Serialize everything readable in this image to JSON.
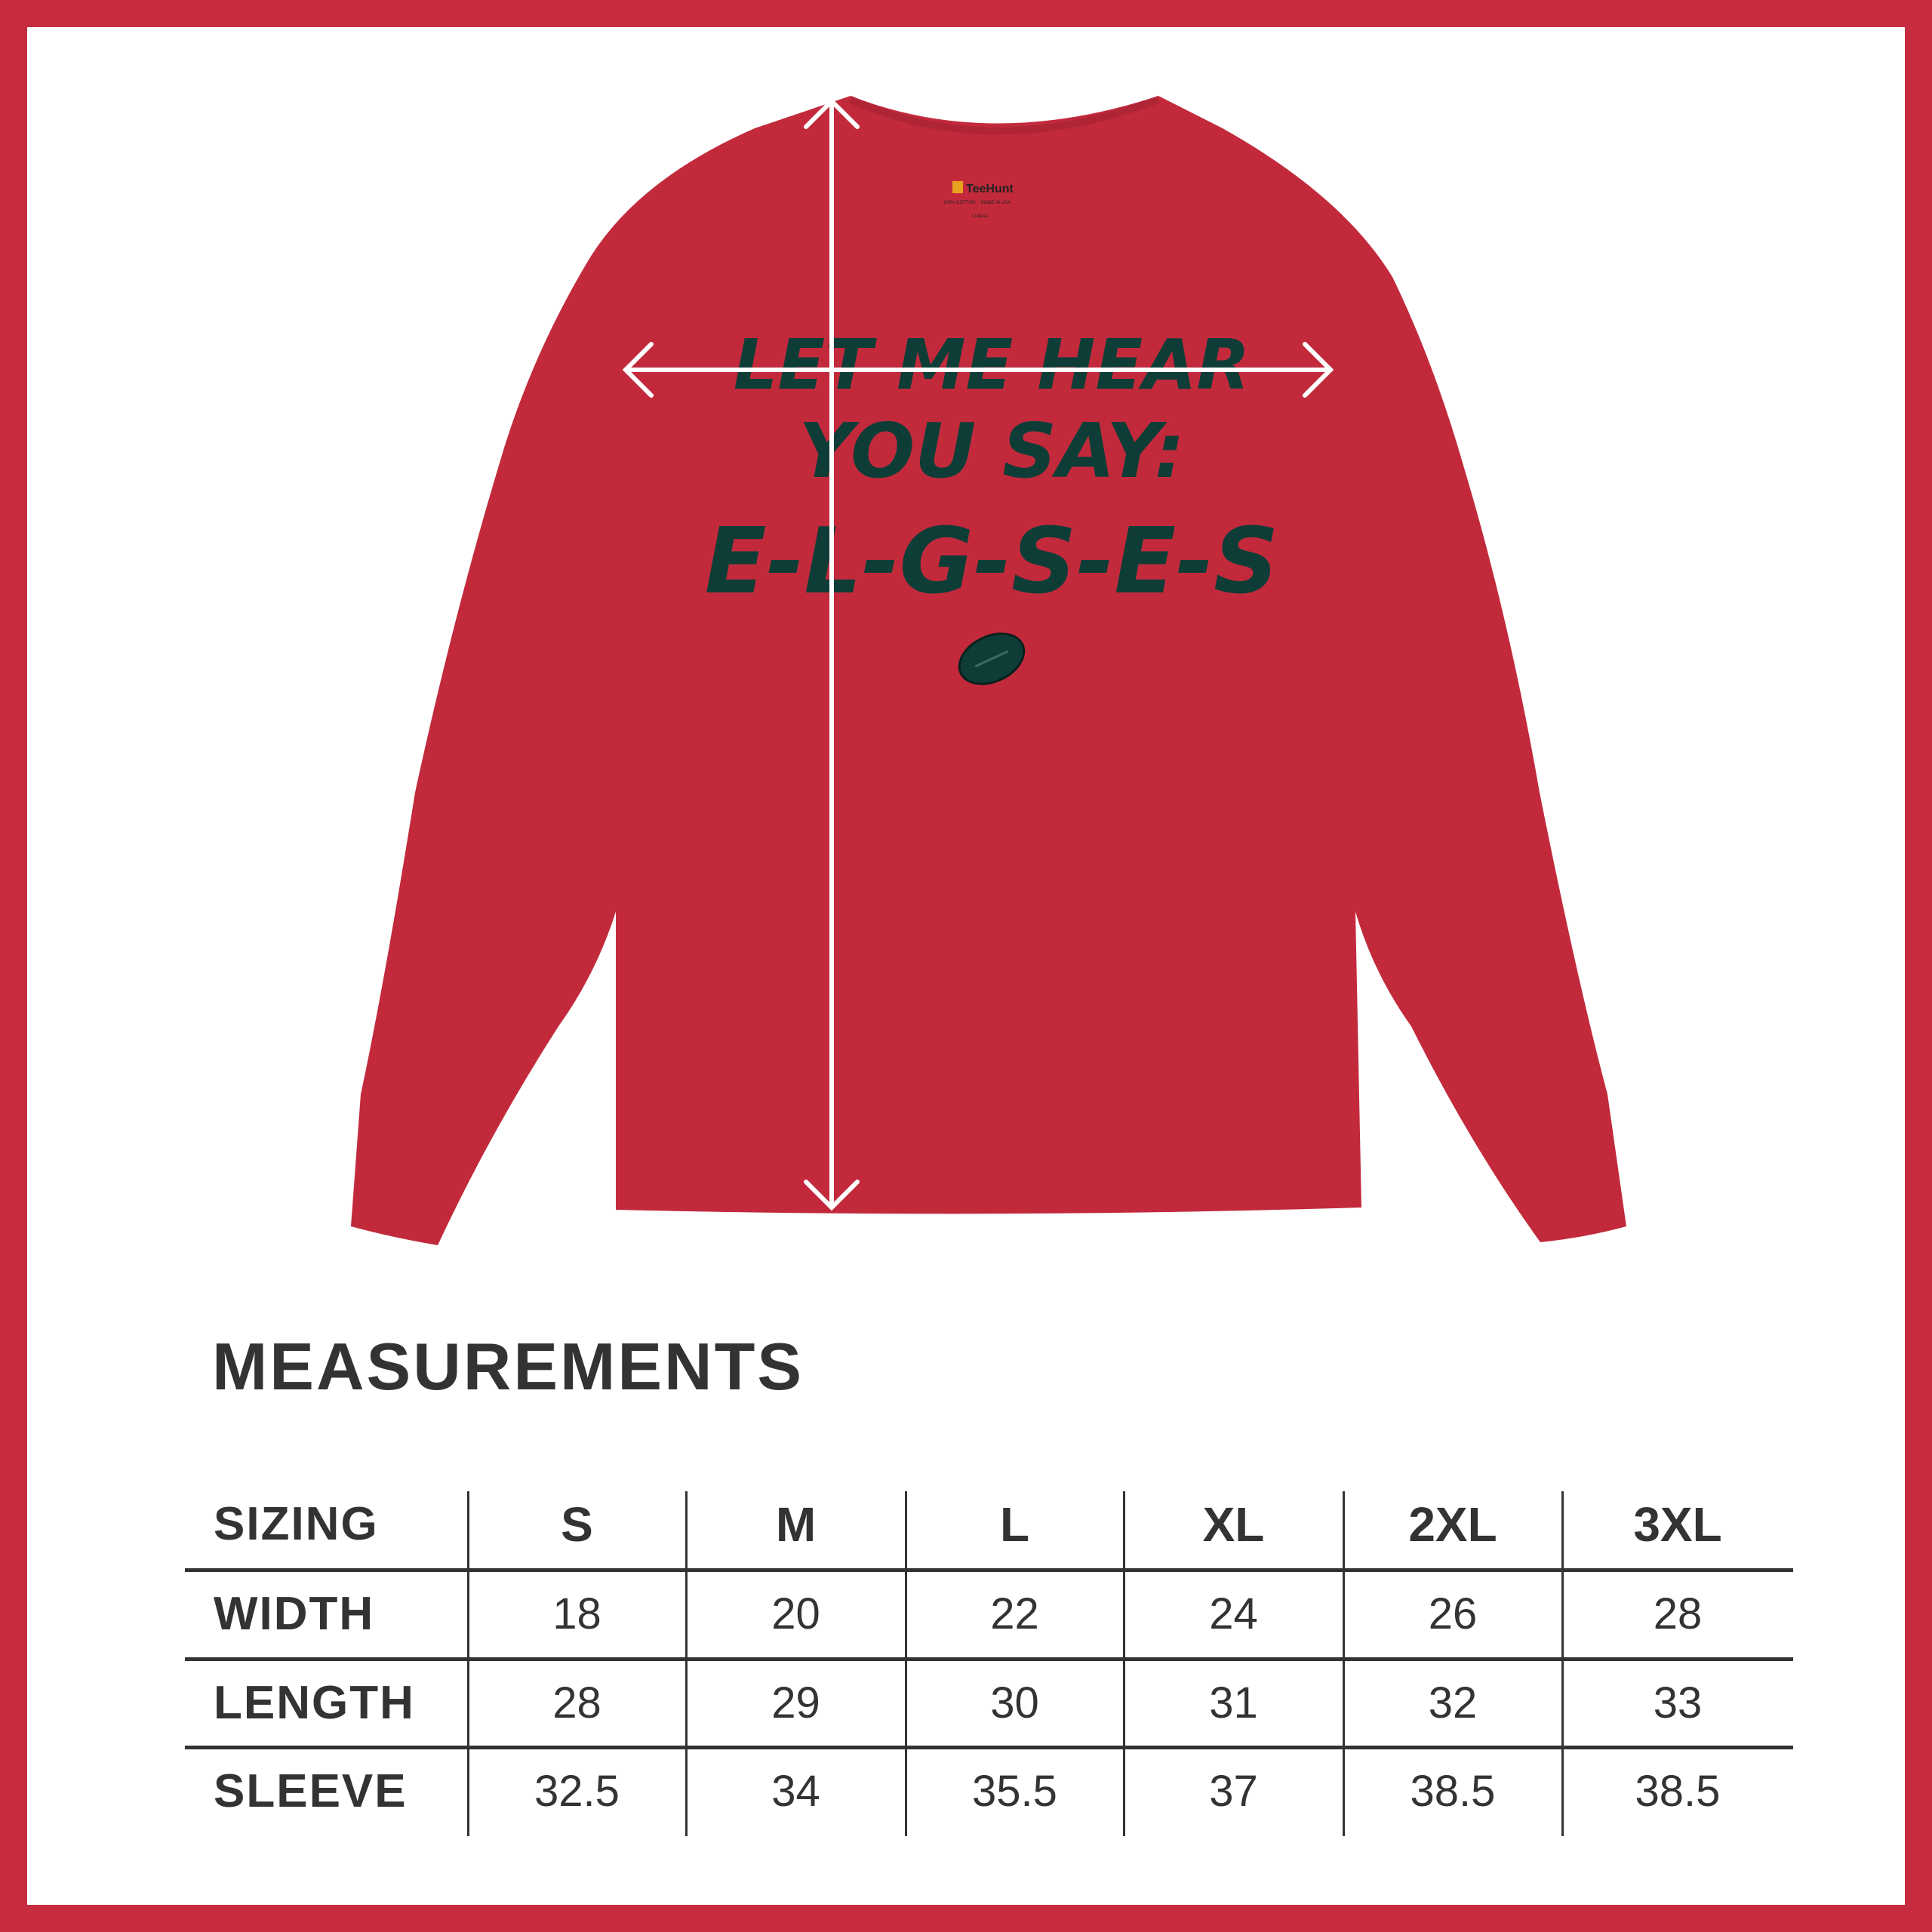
{
  "colors": {
    "frame": "#c62b3f",
    "shirt": "#c22a3c",
    "print": "#0e3d37",
    "text": "#333333"
  },
  "product": {
    "label_brand": "TeeHunt",
    "label_line1": "100% COTTON",
    "label_line2": "MADE IN USA",
    "label_size": "L LARGE",
    "print_lines": [
      "LET ME HEAR",
      "YOU SAY:",
      "E-L-G-S-E-S"
    ],
    "print_icon": "football-icon"
  },
  "measurements": {
    "title": "MEASUREMENTS",
    "header": {
      "label": "SIZING",
      "sizes": [
        "S",
        "M",
        "L",
        "XL",
        "2XL",
        "3XL"
      ]
    },
    "rows": [
      {
        "label": "WIDTH",
        "values": [
          "18",
          "20",
          "22",
          "24",
          "26",
          "28"
        ]
      },
      {
        "label": "LENGTH",
        "values": [
          "28",
          "29",
          "30",
          "31",
          "32",
          "33"
        ]
      },
      {
        "label": "SLEEVE",
        "values": [
          "32.5",
          "34",
          "35.5",
          "37",
          "38.5",
          "38.5"
        ]
      }
    ]
  }
}
